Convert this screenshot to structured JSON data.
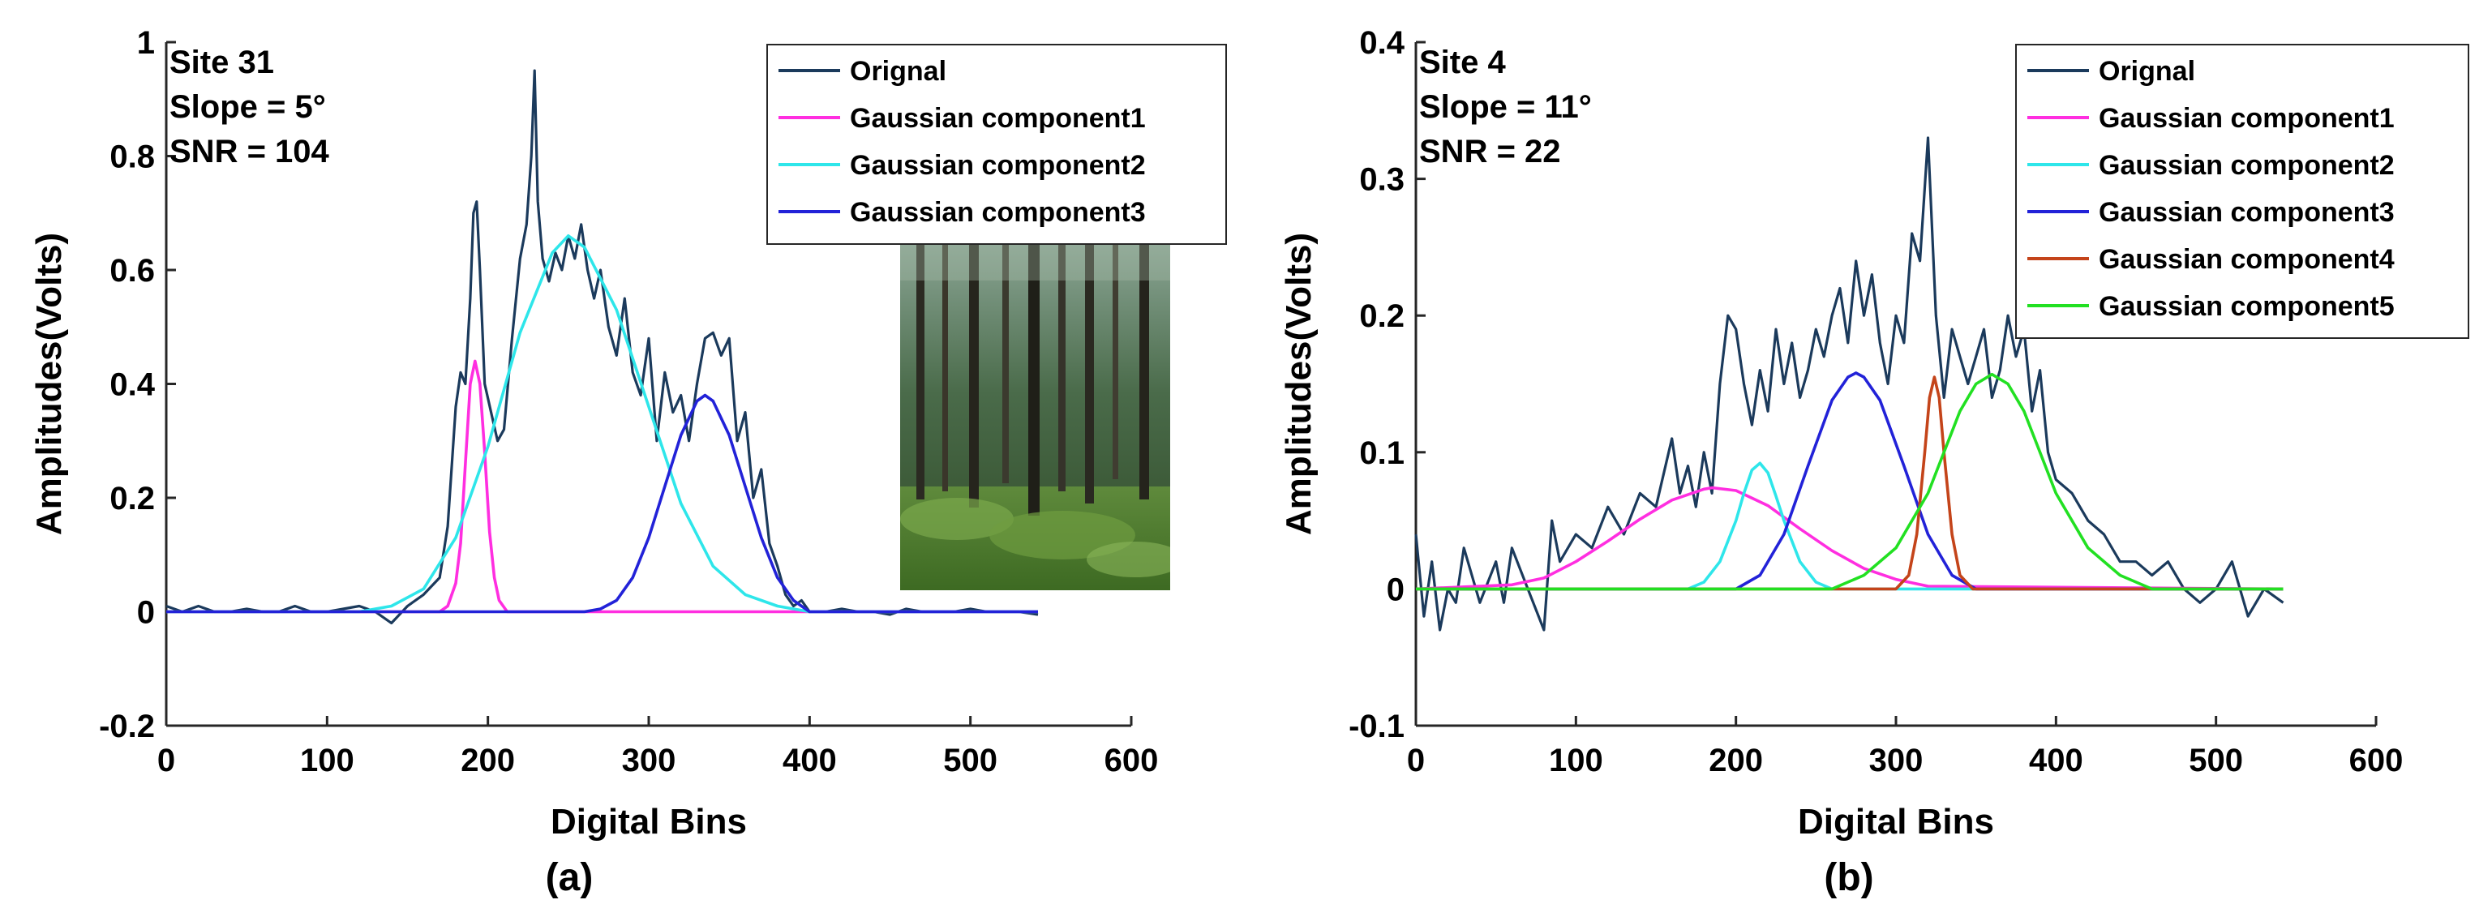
{
  "figure": {
    "panels": [
      {
        "label": "(a)"
      },
      {
        "label": "(b)"
      }
    ]
  },
  "chart_data": [
    {
      "type": "line",
      "annotation": [
        "Site 31",
        "Slope = 5°",
        "SNR = 104"
      ],
      "xlabel": "Digital Bins",
      "ylabel": "Amplitudes(Volts)",
      "xlim": [
        0,
        600
      ],
      "ylim": [
        -0.2,
        1
      ],
      "xticks": [
        0,
        100,
        200,
        300,
        400,
        500,
        600
      ],
      "yticks": [
        -0.2,
        0,
        0.2,
        0.4,
        0.6,
        0.8,
        1
      ],
      "ytick_labels": [
        "-0.2",
        "0",
        "0.2",
        "0.4",
        "0.6",
        "0.8",
        "1"
      ],
      "grid": false,
      "legend_position": "top-right",
      "inset_photo": "forest-photo",
      "x_range": [
        0,
        542
      ],
      "series": [
        {
          "name": "Orignal",
          "color": "#1b3a5c",
          "x": [
            0,
            10,
            20,
            30,
            40,
            50,
            60,
            70,
            80,
            90,
            100,
            110,
            120,
            130,
            140,
            150,
            160,
            170,
            175,
            180,
            183,
            186,
            189,
            191,
            193,
            195,
            198,
            202,
            206,
            210,
            215,
            220,
            224,
            227,
            229,
            231,
            234,
            238,
            242,
            246,
            250,
            254,
            258,
            262,
            266,
            270,
            275,
            280,
            285,
            290,
            295,
            300,
            305,
            310,
            315,
            320,
            325,
            330,
            335,
            340,
            345,
            350,
            355,
            360,
            365,
            370,
            375,
            380,
            385,
            390,
            395,
            400,
            410,
            420,
            430,
            440,
            450,
            460,
            470,
            480,
            490,
            500,
            510,
            520,
            530,
            542
          ],
          "values": [
            0.01,
            0.0,
            0.01,
            0.0,
            0.0,
            0.005,
            0.0,
            0.0,
            0.01,
            0.0,
            0.0,
            0.005,
            0.01,
            0.0,
            -0.02,
            0.01,
            0.03,
            0.06,
            0.15,
            0.36,
            0.42,
            0.4,
            0.55,
            0.7,
            0.72,
            0.6,
            0.4,
            0.35,
            0.3,
            0.32,
            0.48,
            0.62,
            0.68,
            0.8,
            0.95,
            0.72,
            0.62,
            0.58,
            0.63,
            0.6,
            0.66,
            0.62,
            0.68,
            0.6,
            0.55,
            0.6,
            0.5,
            0.45,
            0.55,
            0.42,
            0.38,
            0.48,
            0.3,
            0.42,
            0.35,
            0.38,
            0.3,
            0.4,
            0.48,
            0.49,
            0.45,
            0.48,
            0.3,
            0.35,
            0.2,
            0.25,
            0.12,
            0.08,
            0.03,
            0.01,
            0.02,
            0.0,
            0.0,
            0.005,
            0.0,
            0.0,
            -0.005,
            0.005,
            0.0,
            0.0,
            0.0,
            0.005,
            0.0,
            0.0,
            0.0,
            -0.005
          ]
        },
        {
          "name": "Gaussian component1",
          "color": "#ff2ee0",
          "x": [
            0,
            170,
            175,
            180,
            183,
            186,
            189,
            192,
            195,
            198,
            201,
            204,
            207,
            212,
            220,
            542
          ],
          "values": [
            0,
            0,
            0.01,
            0.05,
            0.12,
            0.26,
            0.4,
            0.44,
            0.4,
            0.28,
            0.14,
            0.06,
            0.02,
            0.0,
            0,
            0
          ]
        },
        {
          "name": "Gaussian component2",
          "color": "#2ee6ea",
          "x": [
            0,
            120,
            140,
            160,
            180,
            200,
            220,
            240,
            250,
            260,
            280,
            300,
            320,
            340,
            360,
            380,
            400,
            420,
            542
          ],
          "values": [
            0,
            0.0,
            0.01,
            0.04,
            0.13,
            0.29,
            0.49,
            0.63,
            0.66,
            0.64,
            0.53,
            0.36,
            0.19,
            0.08,
            0.03,
            0.01,
            0.0,
            0,
            0
          ]
        },
        {
          "name": "Gaussian component3",
          "color": "#2222d8",
          "x": [
            0,
            260,
            270,
            280,
            290,
            300,
            310,
            320,
            330,
            335,
            340,
            350,
            360,
            370,
            380,
            390,
            400,
            542
          ],
          "values": [
            0,
            0.0,
            0.005,
            0.02,
            0.06,
            0.13,
            0.22,
            0.31,
            0.37,
            0.38,
            0.37,
            0.31,
            0.22,
            0.13,
            0.06,
            0.02,
            0.0,
            0
          ]
        }
      ]
    },
    {
      "type": "line",
      "annotation": [
        "Site 4",
        "Slope = 11°",
        "SNR = 22"
      ],
      "xlabel": "Digital Bins",
      "ylabel": "Amplitudes(Volts)",
      "xlim": [
        0,
        600
      ],
      "ylim": [
        -0.1,
        0.4
      ],
      "xticks": [
        0,
        100,
        200,
        300,
        400,
        500,
        600
      ],
      "yticks": [
        -0.1,
        0,
        0.1,
        0.2,
        0.3,
        0.4
      ],
      "ytick_labels": [
        "-0.1",
        "0",
        "0.1",
        "0.2",
        "0.3",
        "0.4"
      ],
      "grid": false,
      "legend_position": "top-right",
      "x_range": [
        0,
        542
      ],
      "series": [
        {
          "name": "Orignal",
          "color": "#1b3a5c",
          "x": [
            0,
            5,
            10,
            15,
            20,
            25,
            30,
            40,
            50,
            55,
            60,
            70,
            80,
            85,
            90,
            100,
            110,
            120,
            130,
            140,
            150,
            160,
            165,
            170,
            175,
            180,
            185,
            190,
            195,
            200,
            205,
            210,
            215,
            220,
            225,
            230,
            235,
            240,
            245,
            250,
            255,
            260,
            265,
            270,
            275,
            280,
            285,
            290,
            295,
            300,
            305,
            310,
            315,
            320,
            325,
            330,
            335,
            340,
            345,
            350,
            355,
            360,
            365,
            370,
            375,
            380,
            385,
            390,
            395,
            400,
            410,
            420,
            430,
            440,
            450,
            460,
            470,
            480,
            490,
            500,
            510,
            520,
            530,
            542
          ],
          "values": [
            0.04,
            -0.02,
            0.02,
            -0.03,
            0.0,
            -0.01,
            0.03,
            -0.01,
            0.02,
            -0.01,
            0.03,
            0.0,
            -0.03,
            0.05,
            0.02,
            0.04,
            0.03,
            0.06,
            0.04,
            0.07,
            0.06,
            0.11,
            0.07,
            0.09,
            0.06,
            0.1,
            0.07,
            0.15,
            0.2,
            0.19,
            0.15,
            0.12,
            0.16,
            0.13,
            0.19,
            0.15,
            0.18,
            0.14,
            0.16,
            0.19,
            0.17,
            0.2,
            0.22,
            0.18,
            0.24,
            0.2,
            0.23,
            0.18,
            0.15,
            0.2,
            0.18,
            0.26,
            0.24,
            0.33,
            0.2,
            0.14,
            0.19,
            0.17,
            0.15,
            0.17,
            0.19,
            0.14,
            0.16,
            0.2,
            0.17,
            0.19,
            0.13,
            0.16,
            0.1,
            0.08,
            0.07,
            0.05,
            0.04,
            0.02,
            0.02,
            0.01,
            0.02,
            0.0,
            -0.01,
            0.0,
            0.02,
            -0.02,
            0.0,
            -0.01
          ]
        },
        {
          "name": "Gaussian component1",
          "color": "#ff2ee0",
          "x": [
            0,
            60,
            80,
            100,
            120,
            140,
            160,
            180,
            185,
            200,
            220,
            240,
            260,
            280,
            300,
            320,
            542
          ],
          "values": [
            0.0,
            0.003,
            0.008,
            0.02,
            0.035,
            0.051,
            0.065,
            0.073,
            0.074,
            0.072,
            0.061,
            0.044,
            0.028,
            0.015,
            0.007,
            0.002,
            0.0
          ]
        },
        {
          "name": "Gaussian component2",
          "color": "#2ee6ea",
          "x": [
            0,
            170,
            180,
            190,
            200,
            205,
            210,
            215,
            220,
            225,
            230,
            240,
            250,
            260,
            542
          ],
          "values": [
            0,
            0.0,
            0.005,
            0.02,
            0.05,
            0.07,
            0.087,
            0.092,
            0.085,
            0.068,
            0.05,
            0.02,
            0.005,
            0.0,
            0
          ]
        },
        {
          "name": "Gaussian component3",
          "color": "#2222d8",
          "x": [
            0,
            200,
            215,
            230,
            245,
            260,
            270,
            275,
            280,
            290,
            305,
            320,
            335,
            350,
            542
          ],
          "values": [
            0,
            0.0,
            0.01,
            0.04,
            0.09,
            0.138,
            0.155,
            0.158,
            0.155,
            0.138,
            0.09,
            0.04,
            0.01,
            0.0,
            0
          ]
        },
        {
          "name": "Gaussian component4",
          "color": "#c4441a",
          "x": [
            0,
            300,
            308,
            313,
            318,
            321,
            324,
            327,
            330,
            335,
            340,
            348,
            542
          ],
          "values": [
            0,
            0.0,
            0.01,
            0.04,
            0.1,
            0.14,
            0.155,
            0.14,
            0.1,
            0.04,
            0.01,
            0.0,
            0
          ]
        },
        {
          "name": "Gaussian component5",
          "color": "#22e022",
          "x": [
            0,
            260,
            280,
            300,
            320,
            340,
            350,
            360,
            370,
            380,
            400,
            420,
            440,
            460,
            542
          ],
          "values": [
            0,
            0.0,
            0.01,
            0.03,
            0.07,
            0.13,
            0.15,
            0.157,
            0.15,
            0.13,
            0.07,
            0.03,
            0.01,
            0.0,
            0
          ]
        }
      ]
    }
  ]
}
